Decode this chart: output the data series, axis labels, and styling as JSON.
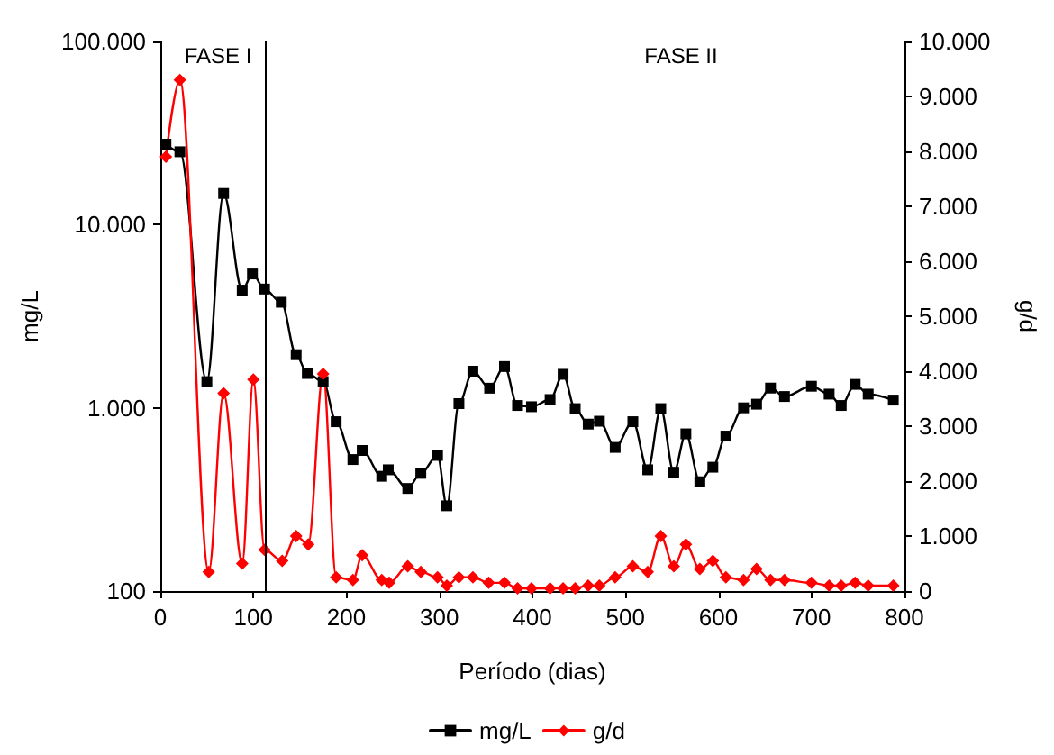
{
  "chart_data": {
    "type": "line",
    "xlabel": "Período (dias)",
    "ylabel": "mg/L",
    "y2label": "g/d",
    "x": [
      6,
      21,
      50,
      68,
      88,
      99,
      112,
      130,
      146,
      158,
      175,
      189,
      207,
      217,
      238,
      245,
      266,
      280,
      298,
      308,
      321,
      336,
      354,
      370,
      384,
      399,
      419,
      433,
      446,
      460,
      472,
      489,
      508,
      524,
      538,
      552,
      565,
      580,
      594,
      608,
      627,
      641,
      656,
      671,
      700,
      719,
      732,
      747,
      761,
      788
    ],
    "series": [
      {
        "name": "mg/L",
        "color": "#000000",
        "marker": "square",
        "values": [
          27500,
          25000,
          1390,
          14800,
          4390,
          5380,
          4450,
          3770,
          1950,
          1540,
          1390,
          840,
          522,
          585,
          423,
          459,
          363,
          439,
          550,
          292,
          1054,
          1585,
          1280,
          1680,
          1030,
          1014,
          1110,
          1524,
          990,
          815,
          845,
          608,
          840,
          459,
          990,
          445,
          721,
          395,
          474,
          701,
          1000,
          1047,
          1282,
          1153,
          1312,
          1188,
          1030,
          1343,
          1188,
          1102
        ]
      },
      {
        "name": "g/d",
        "color": "#ff0000",
        "marker": "diamond",
        "axis": "y2",
        "x": [
          6,
          21,
          52,
          68,
          88,
          100,
          112,
          131,
          146,
          159,
          175,
          189,
          207,
          217,
          238,
          246,
          266,
          280,
          298,
          308,
          321,
          336,
          353,
          370,
          384,
          399,
          419,
          433,
          446,
          460,
          472,
          489,
          508,
          524,
          538,
          552,
          565,
          580,
          594,
          608,
          627,
          641,
          656,
          671,
          700,
          719,
          732,
          747,
          761,
          788
        ],
        "values": [
          7900,
          9300,
          350,
          3600,
          500,
          3850,
          750,
          550,
          1000,
          850,
          3950,
          250,
          200,
          650,
          200,
          150,
          450,
          350,
          250,
          100,
          250,
          250,
          150,
          150,
          50,
          50,
          50,
          50,
          50,
          100,
          100,
          250,
          450,
          350,
          1000,
          450,
          850,
          400,
          550,
          250,
          200,
          400,
          200,
          200,
          150,
          100,
          100,
          150,
          100,
          100
        ]
      }
    ],
    "log": "y",
    "xlim": [
      0,
      800
    ],
    "xticks": [
      0,
      100,
      200,
      300,
      400,
      500,
      600,
      700,
      800
    ],
    "ylim": [
      100,
      100000
    ],
    "yticks": [
      100,
      {
        "value": 1000,
        "label": "1.000"
      },
      {
        "value": 10000,
        "label": "10.000"
      },
      {
        "value": 100000,
        "label": "100.000"
      }
    ],
    "y2lim": [
      0,
      10000
    ],
    "y2ticks": [
      0,
      {
        "value": 1000,
        "label": "1.000"
      },
      {
        "value": 2000,
        "label": "2.000"
      },
      {
        "value": 3000,
        "label": "3.000"
      },
      {
        "value": 4000,
        "label": "4.000"
      },
      {
        "value": 5000,
        "label": "5.000"
      },
      {
        "value": 6000,
        "label": "6.000"
      },
      {
        "value": 7000,
        "label": "7.000"
      },
      {
        "value": 8000,
        "label": "8.000"
      },
      {
        "value": 9000,
        "label": "9.000"
      },
      {
        "value": 10000,
        "label": "10.000"
      }
    ],
    "ref_lines": [
      {
        "axis": "x",
        "value": 112,
        "color": "#000000"
      }
    ],
    "annotations": [
      "FASE I",
      "FASE II"
    ],
    "legend": "bottom",
    "grid": false
  }
}
